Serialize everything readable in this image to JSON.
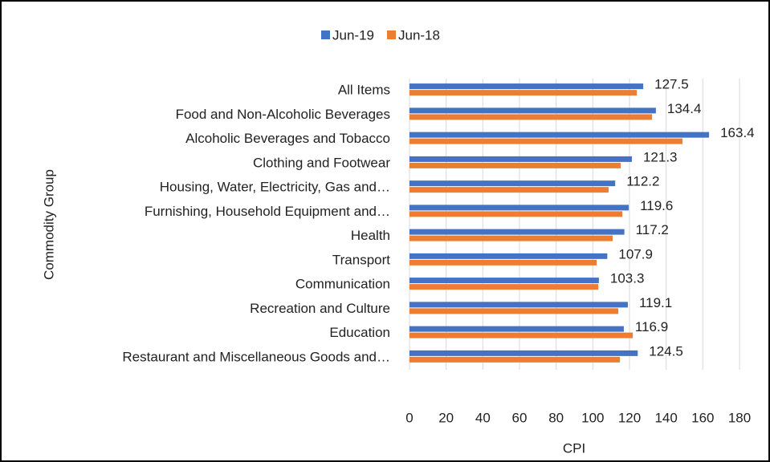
{
  "chart_data": {
    "type": "bar",
    "orientation": "horizontal",
    "x_axis_label": "CPI",
    "y_axis_label": "Commodity Group",
    "categories": [
      "All Items",
      "Food and Non-Alcoholic Beverages",
      "Alcoholic Beverages and Tobacco",
      "Clothing and Footwear",
      "Housing, Water, Electricity, Gas and…",
      "Furnishing, Household Equipment and…",
      "Health",
      "Transport",
      "Communication",
      "Recreation and Culture",
      "Education",
      "Restaurant and Miscellaneous Goods and…"
    ],
    "series": [
      {
        "name": "Jun-19",
        "color": "#4472c4",
        "values": [
          127.5,
          134.4,
          163.4,
          121.3,
          112.2,
          119.6,
          117.2,
          107.9,
          103.3,
          119.1,
          116.9,
          124.5
        ],
        "data_labels": true
      },
      {
        "name": "Jun-18",
        "color": "#ed7d31",
        "values": [
          124.0,
          132.3,
          148.9,
          115.2,
          108.6,
          116.1,
          110.8,
          102.1,
          103.0,
          113.9,
          121.8,
          114.8
        ],
        "data_labels": false
      }
    ],
    "xlim": [
      0,
      180
    ],
    "xticks": [
      0,
      20,
      40,
      60,
      80,
      100,
      120,
      140,
      160,
      180
    ],
    "grid": true,
    "legend": "top"
  }
}
